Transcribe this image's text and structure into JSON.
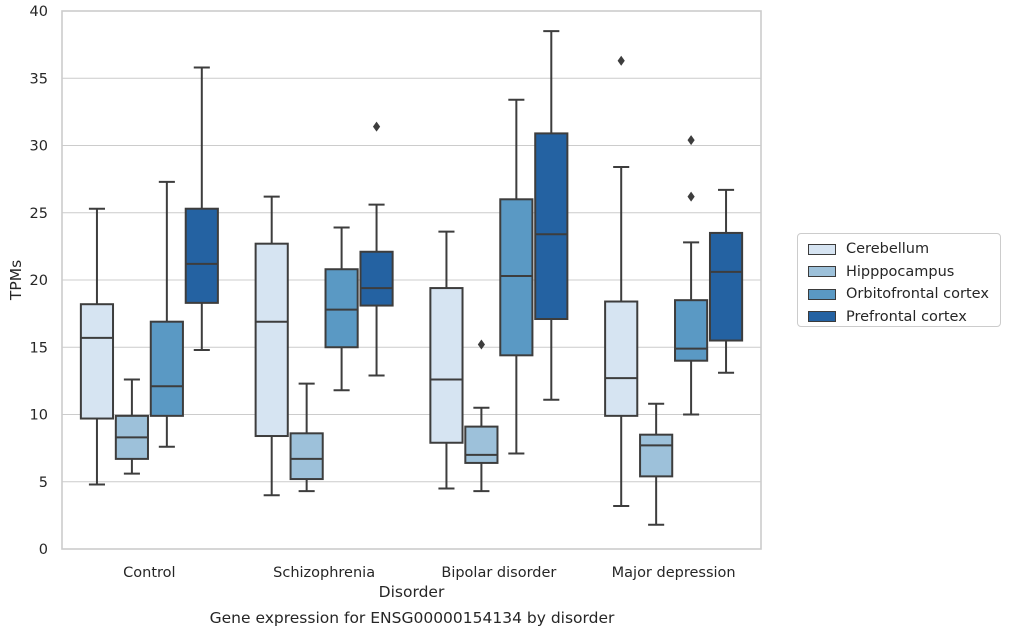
{
  "chart_data": {
    "type": "box",
    "title": "",
    "caption": "Gene expression for ENSG00000154134 by disorder",
    "xlabel": "Disorder",
    "ylabel": "TPMs",
    "ylim": [
      0,
      40
    ],
    "yticks": [
      0,
      5,
      10,
      15,
      20,
      25,
      30,
      35,
      40
    ],
    "grid": "horizontal",
    "legend_position": "right",
    "categories": [
      "Control",
      "Schizophrenia",
      "Bipolar disorder",
      "Major depression"
    ],
    "series": [
      {
        "name": "Cerebellum",
        "color": "#d6e4f2",
        "boxes": [
          {
            "whislo": 4.8,
            "q1": 9.7,
            "med": 15.7,
            "q3": 18.2,
            "whishi": 25.3,
            "fliers": []
          },
          {
            "whislo": 4.0,
            "q1": 8.4,
            "med": 16.9,
            "q3": 22.7,
            "whishi": 26.2,
            "fliers": []
          },
          {
            "whislo": 4.5,
            "q1": 7.9,
            "med": 12.6,
            "q3": 19.4,
            "whishi": 23.6,
            "fliers": []
          },
          {
            "whislo": 3.2,
            "q1": 9.9,
            "med": 12.7,
            "q3": 18.4,
            "whishi": 28.4,
            "fliers": [
              36.3
            ]
          }
        ]
      },
      {
        "name": "Hipppocampus",
        "color": "#9dc1da",
        "boxes": [
          {
            "whislo": 5.6,
            "q1": 6.7,
            "med": 8.3,
            "q3": 9.9,
            "whishi": 12.6,
            "fliers": []
          },
          {
            "whislo": 4.3,
            "q1": 5.2,
            "med": 6.7,
            "q3": 8.6,
            "whishi": 12.3,
            "fliers": []
          },
          {
            "whislo": 4.3,
            "q1": 6.4,
            "med": 7.0,
            "q3": 9.1,
            "whishi": 10.5,
            "fliers": [
              15.2
            ]
          },
          {
            "whislo": 1.8,
            "q1": 5.4,
            "med": 7.7,
            "q3": 8.5,
            "whishi": 10.8,
            "fliers": []
          }
        ]
      },
      {
        "name": "Orbitofrontal cortex",
        "color": "#5a99c4",
        "boxes": [
          {
            "whislo": 7.6,
            "q1": 9.9,
            "med": 12.1,
            "q3": 16.9,
            "whishi": 27.3,
            "fliers": []
          },
          {
            "whislo": 11.8,
            "q1": 15.0,
            "med": 17.8,
            "q3": 20.8,
            "whishi": 23.9,
            "fliers": []
          },
          {
            "whislo": 7.1,
            "q1": 14.4,
            "med": 20.3,
            "q3": 26.0,
            "whishi": 33.4,
            "fliers": []
          },
          {
            "whislo": 10.0,
            "q1": 14.0,
            "med": 14.9,
            "q3": 18.5,
            "whishi": 22.8,
            "fliers": [
              26.2,
              30.4
            ]
          }
        ]
      },
      {
        "name": "Prefrontal cortex",
        "color": "#2462a2",
        "boxes": [
          {
            "whislo": 14.8,
            "q1": 18.3,
            "med": 21.2,
            "q3": 25.3,
            "whishi": 35.8,
            "fliers": []
          },
          {
            "whislo": 12.9,
            "q1": 18.1,
            "med": 19.4,
            "q3": 22.1,
            "whishi": 25.6,
            "fliers": [
              31.4
            ]
          },
          {
            "whislo": 11.1,
            "q1": 17.1,
            "med": 23.4,
            "q3": 30.9,
            "whishi": 38.5,
            "fliers": []
          },
          {
            "whislo": 13.1,
            "q1": 15.5,
            "med": 20.6,
            "q3": 23.5,
            "whishi": 26.7,
            "fliers": []
          }
        ]
      }
    ]
  }
}
